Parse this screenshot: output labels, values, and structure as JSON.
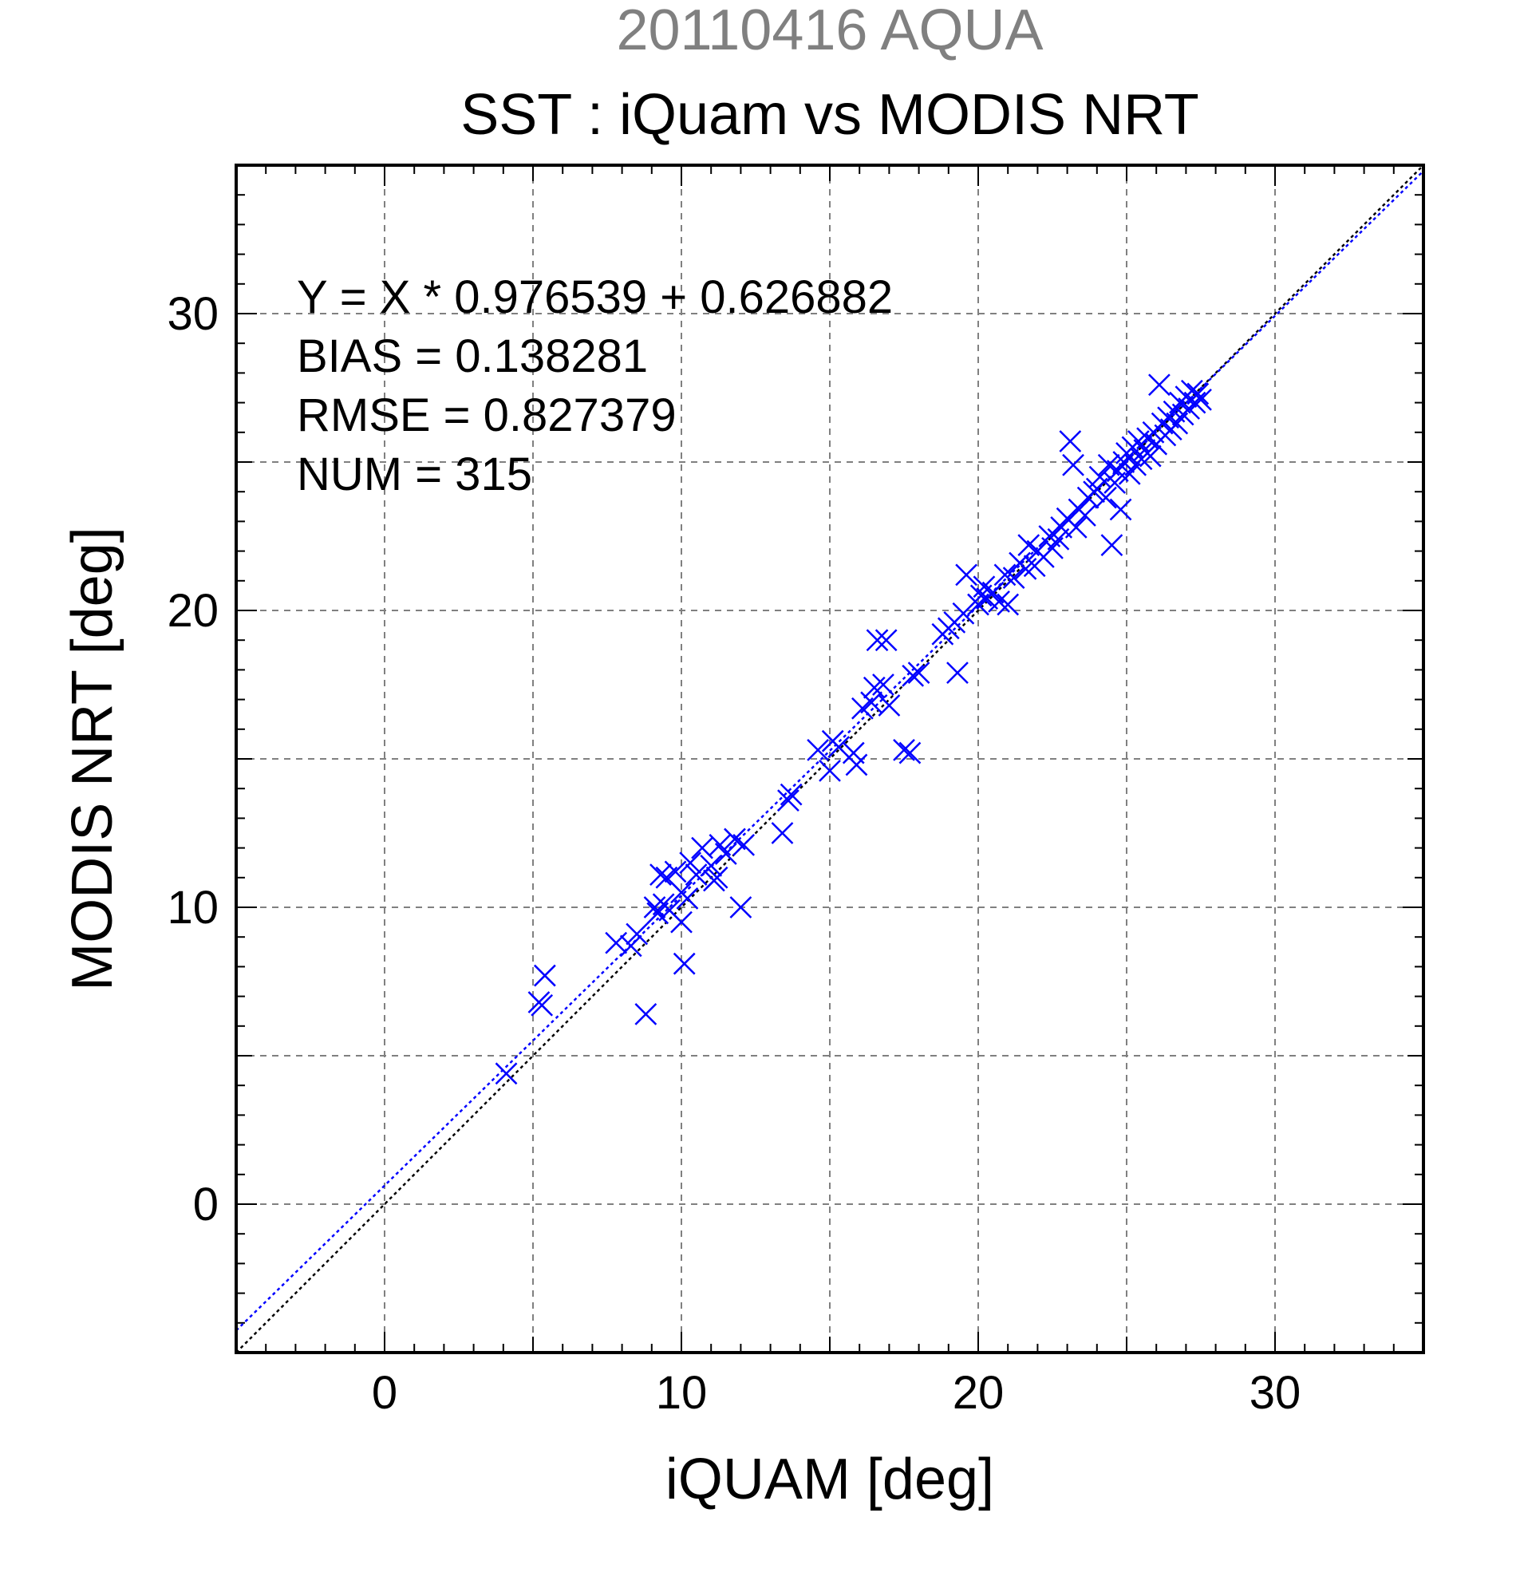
{
  "chart_data": {
    "type": "scatter",
    "suptitle": "20110416 AQUA",
    "title": "SST : iQuam vs MODIS NRT",
    "xlabel": "iQUAM [deg]",
    "ylabel": "MODIS NRT [deg]",
    "xlim": [
      -5,
      35
    ],
    "ylim": [
      -5,
      35
    ],
    "xticks": [
      0,
      10,
      20,
      30
    ],
    "yticks": [
      0,
      10,
      20,
      30
    ],
    "grid": true,
    "colors": {
      "points": "#0000ff",
      "fit_line": "#0000ff",
      "identity_line": "#000000",
      "suptitle": "#808080",
      "grid": "#808080"
    },
    "stats": [
      "Y = X * 0.976539 + 0.626882",
      "BIAS = 0.138281",
      "RMSE = 0.827379",
      "NUM = 315"
    ],
    "fit": {
      "slope": 0.976539,
      "intercept": 0.626882
    },
    "identity": {
      "slope": 1,
      "intercept": 0
    },
    "series": [
      {
        "marker": "x",
        "points": [
          [
            4.1,
            4.4
          ],
          [
            5.2,
            6.8
          ],
          [
            5.3,
            6.7
          ],
          [
            5.4,
            7.7
          ],
          [
            7.8,
            8.8
          ],
          [
            8.3,
            8.7
          ],
          [
            8.5,
            9.1
          ],
          [
            8.8,
            6.4
          ],
          [
            9.1,
            10.0
          ],
          [
            9.2,
            9.8
          ],
          [
            9.3,
            11.1
          ],
          [
            9.4,
            10.1
          ],
          [
            9.5,
            11.0
          ],
          [
            9.6,
            9.9
          ],
          [
            9.8,
            11.2
          ],
          [
            10.0,
            10.5
          ],
          [
            10.0,
            9.5
          ],
          [
            10.1,
            8.1
          ],
          [
            10.2,
            10.3
          ],
          [
            10.3,
            11.5
          ],
          [
            10.5,
            11.1
          ],
          [
            10.7,
            12.0
          ],
          [
            11.0,
            11.4
          ],
          [
            11.1,
            10.9
          ],
          [
            11.2,
            11.0
          ],
          [
            11.3,
            12.1
          ],
          [
            11.5,
            11.8
          ],
          [
            11.8,
            12.3
          ],
          [
            12.0,
            10.0
          ],
          [
            12.1,
            12.1
          ],
          [
            13.4,
            12.5
          ],
          [
            13.6,
            13.6
          ],
          [
            13.7,
            13.8
          ],
          [
            14.6,
            15.3
          ],
          [
            15.0,
            14.6
          ],
          [
            15.1,
            15.6
          ],
          [
            15.3,
            15.4
          ],
          [
            15.8,
            15.2
          ],
          [
            15.9,
            14.8
          ],
          [
            16.1,
            16.7
          ],
          [
            16.4,
            16.9
          ],
          [
            16.5,
            17.4
          ],
          [
            16.6,
            19.0
          ],
          [
            16.9,
            19.0
          ],
          [
            16.8,
            17.5
          ],
          [
            17.0,
            16.8
          ],
          [
            17.5,
            15.3
          ],
          [
            17.7,
            15.2
          ],
          [
            17.8,
            17.8
          ],
          [
            18.0,
            17.9
          ],
          [
            18.8,
            19.2
          ],
          [
            19.0,
            19.4
          ],
          [
            19.2,
            19.6
          ],
          [
            19.3,
            17.9
          ],
          [
            19.5,
            19.9
          ],
          [
            19.6,
            21.2
          ],
          [
            20.0,
            20.2
          ],
          [
            20.1,
            20.5
          ],
          [
            20.2,
            20.8
          ],
          [
            20.3,
            20.4
          ],
          [
            20.5,
            20.6
          ],
          [
            20.7,
            20.3
          ],
          [
            20.9,
            21.2
          ],
          [
            21.0,
            20.2
          ],
          [
            21.2,
            21.1
          ],
          [
            21.4,
            21.6
          ],
          [
            21.6,
            21.4
          ],
          [
            21.7,
            22.2
          ],
          [
            21.9,
            21.5
          ],
          [
            22.0,
            22.0
          ],
          [
            22.2,
            21.8
          ],
          [
            22.4,
            22.5
          ],
          [
            22.5,
            22.1
          ],
          [
            22.7,
            22.4
          ],
          [
            22.8,
            22.8
          ],
          [
            23.0,
            23.1
          ],
          [
            23.1,
            25.7
          ],
          [
            23.2,
            24.9
          ],
          [
            23.3,
            22.8
          ],
          [
            23.4,
            23.4
          ],
          [
            23.6,
            23.2
          ],
          [
            23.7,
            23.8
          ],
          [
            23.9,
            24.0
          ],
          [
            24.0,
            24.1
          ],
          [
            24.1,
            24.5
          ],
          [
            24.3,
            23.8
          ],
          [
            24.4,
            24.9
          ],
          [
            24.5,
            22.2
          ],
          [
            24.6,
            24.3
          ],
          [
            24.7,
            24.7
          ],
          [
            24.8,
            23.4
          ],
          [
            24.9,
            25.0
          ],
          [
            25.0,
            25.3
          ],
          [
            25.1,
            24.6
          ],
          [
            25.2,
            25.5
          ],
          [
            25.3,
            24.9
          ],
          [
            25.4,
            25.7
          ],
          [
            25.5,
            25.1
          ],
          [
            25.6,
            25.4
          ],
          [
            25.7,
            25.8
          ],
          [
            25.8,
            25.2
          ],
          [
            25.9,
            26.0
          ],
          [
            26.0,
            25.6
          ],
          [
            26.1,
            27.6
          ],
          [
            26.2,
            26.3
          ],
          [
            26.3,
            25.9
          ],
          [
            26.4,
            26.5
          ],
          [
            26.5,
            26.1
          ],
          [
            26.6,
            26.7
          ],
          [
            26.7,
            26.3
          ],
          [
            26.8,
            27.0
          ],
          [
            26.9,
            26.6
          ],
          [
            27.0,
            27.2
          ],
          [
            27.1,
            26.8
          ],
          [
            27.2,
            27.4
          ],
          [
            27.3,
            27.0
          ],
          [
            27.4,
            27.3
          ],
          [
            27.5,
            27.1
          ]
        ]
      }
    ]
  }
}
